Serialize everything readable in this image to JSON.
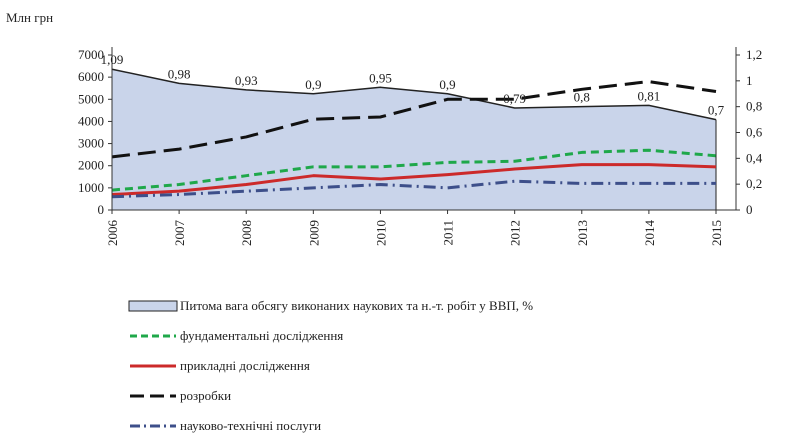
{
  "chart_data": {
    "type": "area+line",
    "ylabel": "Млн грн",
    "categories": [
      "2006",
      "2007",
      "2008",
      "2009",
      "2010",
      "2011",
      "2012",
      "2013",
      "2014",
      "2015"
    ],
    "y_left": {
      "min": 0,
      "max": 7000,
      "step": 1000
    },
    "y_right": {
      "min": 0,
      "max": 1.2,
      "step": 0.2
    },
    "area": {
      "name": "Питома вага обсягу виконаних наукових та н.-т. робіт у ВВП, %",
      "axis": "right",
      "values": [
        1.09,
        0.98,
        0.93,
        0.9,
        0.95,
        0.9,
        0.79,
        0.8,
        0.81,
        0.7
      ],
      "labels": [
        "1,09",
        "0,98",
        "0,93",
        "0,9",
        "0,95",
        "0,9",
        "0,79",
        "0,8",
        "0,81",
        "0,7"
      ],
      "fill": "#c9d4ea",
      "stroke": "#222222"
    },
    "series": [
      {
        "name": "фундаментальні дослідження",
        "axis": "left",
        "color": "#1fa84a",
        "dash": "dashed",
        "values": [
          900,
          1150,
          1550,
          1950,
          1950,
          2150,
          2200,
          2600,
          2700,
          2450
        ]
      },
      {
        "name": "прикладні дослідження",
        "axis": "left",
        "color": "#cc2a2a",
        "dash": "solid",
        "values": [
          700,
          850,
          1150,
          1550,
          1400,
          1600,
          1850,
          2050,
          2050,
          1950
        ]
      },
      {
        "name": "розробки",
        "axis": "left",
        "color": "#111111",
        "dash": "longdash",
        "values": [
          2400,
          2750,
          3300,
          4100,
          4200,
          5000,
          5000,
          5450,
          5800,
          5350
        ]
      },
      {
        "name": "науково-технічні послуги",
        "axis": "left",
        "color": "#3d4f8a",
        "dash": "dashdot",
        "values": [
          600,
          700,
          850,
          1000,
          1150,
          1000,
          1300,
          1200,
          1200,
          1200
        ]
      }
    ],
    "legend": "bottom"
  }
}
